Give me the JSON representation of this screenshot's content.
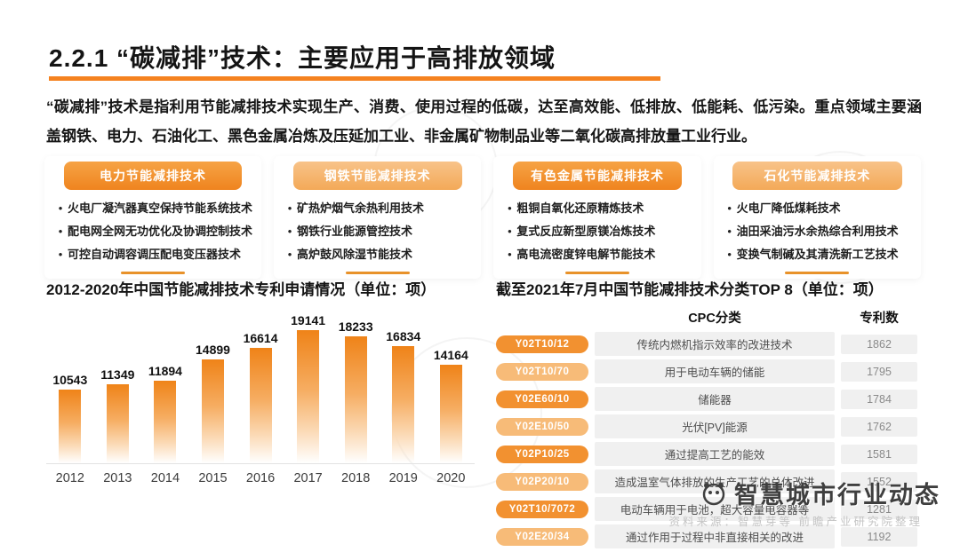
{
  "slide": {
    "title": "2.2.1 “碳减排”技术：主要应用于高排放领域",
    "intro": "“碳减排”技术是指利用节能减排技术实现生产、消费、使用过程的低碳，达至高效能、低排放、低能耗、低污染。重点领域主要涵盖钢铁、电力、石油化工、黑色金属冶炼及压延加工业、非金属矿物制品业等二氧化碳高排放量工业行业。"
  },
  "colors": {
    "accent": "#F5821F",
    "pill_dark": "#F29130",
    "pill_light": "#F7BB78",
    "bar_top": "#EF8318"
  },
  "categories": [
    {
      "label": "电力节能减排技术",
      "tone": "dark",
      "bullets": [
        "火电厂凝汽器真空保持节能系统技术",
        "配电网全网无功优化及协调控制技术",
        "可控自动调容调压配电变压器技术"
      ]
    },
    {
      "label": "钢铁节能减排技术",
      "tone": "light",
      "bullets": [
        "矿热炉烟气余热利用技术",
        "钢铁行业能源管控技术",
        "高炉鼓风除湿节能技术"
      ]
    },
    {
      "label": "有色金属节能减排技术",
      "tone": "dark",
      "bullets": [
        "粗铜自氧化还原精炼技术",
        "复式反应新型原镁冶炼技术",
        "高电流密度锌电解节能技术"
      ]
    },
    {
      "label": "石化节能减排技术",
      "tone": "light",
      "bullets": [
        "火电厂降低煤耗技术",
        "油田采油污水余热综合利用技术",
        "变换气制碱及其清洗新工艺技术"
      ]
    }
  ],
  "chart_data": {
    "type": "bar",
    "title": "2012-2020年中国节能减排技术专利申请情况（单位：项）",
    "categories": [
      "2012",
      "2013",
      "2014",
      "2015",
      "2016",
      "2017",
      "2018",
      "2019",
      "2020"
    ],
    "values": [
      10543,
      11349,
      11894,
      14899,
      16614,
      19141,
      18233,
      16834,
      14164
    ],
    "xlabel": "",
    "ylabel": "",
    "ylim": [
      0,
      19141
    ],
    "grid": false,
    "legend": false,
    "bar_color": "#EF8318",
    "label_position": "above-bar"
  },
  "table": {
    "title": "截至2021年7月中国节能减排技术分类TOP 8（单位：项）",
    "headers": [
      "CPC分类",
      "专利数"
    ],
    "rows": [
      {
        "code": "Y02T10/12",
        "desc": "传统内燃机指示效率的改进技术",
        "count": "1862",
        "tone": "dark"
      },
      {
        "code": "Y02T10/70",
        "desc": "用于电动车辆的储能",
        "count": "1795",
        "tone": "light"
      },
      {
        "code": "Y02E60/10",
        "desc": "储能器",
        "count": "1784",
        "tone": "dark"
      },
      {
        "code": "Y02E10/50",
        "desc": "光伏[PV]能源",
        "count": "1762",
        "tone": "light"
      },
      {
        "code": "Y02P10/25",
        "desc": "通过提高工艺的能效",
        "count": "1581",
        "tone": "dark"
      },
      {
        "code": "Y02P20/10",
        "desc": "造成温室气体排放的生产工艺的总体改进",
        "count": "1552",
        "tone": "light"
      },
      {
        "code": "Y02T10/7072",
        "desc": "电动车辆用于电池，超大容量电容器等",
        "count": "1281",
        "tone": "dark"
      },
      {
        "code": "Y02E20/34",
        "desc": "通过作用于过程中非直接相关的改进",
        "count": "1192",
        "tone": "light"
      }
    ]
  },
  "footer": {
    "logo_text": "智慧城市行业动态",
    "source_text": "资料来源：智慧芽等 前瞻产业研究院整理"
  }
}
